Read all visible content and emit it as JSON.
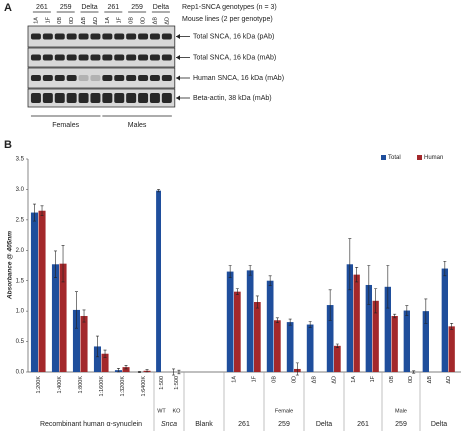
{
  "blot": {
    "label": "A",
    "genotype_title": "Rep1-SNCA genotypes (n = 3)",
    "lines_title": "Mouse lines (2 per genotype)",
    "genotypes": [
      "261",
      "259",
      "Delta",
      "261",
      "259",
      "Delta"
    ],
    "lanes": [
      "1A",
      "1F",
      "0B",
      "0D",
      "ΔB",
      "ΔD",
      "1A",
      "1F",
      "0B",
      "0D",
      "ΔB",
      "ΔD"
    ],
    "rows": [
      "Total SNCA, 16 kDa (pAb)",
      "Total SNCA, 16 kDa (mAb)",
      "Human SNCA, 16 kDa (mAb)",
      "Beta-actin, 38 kDa (mAb)"
    ],
    "sexes": [
      "Females",
      "Males"
    ]
  },
  "chart_data": {
    "type": "bar",
    "label": "B",
    "y_label": "Absorbance @ 405nm",
    "ylim": [
      0,
      3.5
    ],
    "yticks": [
      {
        "value": 0,
        "label": "0.0"
      },
      {
        "value": 0.5,
        "label": "0.5"
      },
      {
        "value": 1,
        "label": "1.0"
      },
      {
        "value": 1.5,
        "label": "1.5"
      },
      {
        "value": 2,
        "label": "2.0"
      },
      {
        "value": 2.5,
        "label": "2.5"
      },
      {
        "value": 3,
        "label": "3.0"
      },
      {
        "value": 3.5,
        "label": "3.5"
      }
    ],
    "categories": [
      "1:200K",
      "1:400K",
      "1:800K",
      "1:1600K",
      "1:3200K",
      "1:6400K",
      "1:500",
      "1:500",
      null,
      "1A",
      "1F",
      "0B",
      "0D",
      "ΔB",
      "ΔD",
      "1A",
      "1F",
      "0B",
      "0D",
      "ΔB",
      "ΔD"
    ],
    "subgroup": [
      null,
      null,
      null,
      null,
      null,
      null,
      "WT",
      "KO",
      null,
      "Female",
      "Female",
      "Female",
      "Female",
      "Female",
      "Female",
      "Male",
      "Male",
      "Male",
      "Male",
      "Male",
      "Male"
    ],
    "group": [
      "Recombinant human α-synuclein",
      "Recombinant human α-synuclein",
      "Recombinant human α-synuclein",
      "Recombinant human α-synuclein",
      "Recombinant human α-synuclein",
      "Recombinant human α-synuclein",
      "Snca",
      "Snca",
      "Blank",
      "261",
      "261",
      "259",
      "259",
      "Delta",
      "Delta",
      "261",
      "261",
      "259",
      "259",
      "Delta",
      "Delta"
    ],
    "series": [
      {
        "name": "Total",
        "color": "#1f4e9c",
        "values": [
          2.62,
          1.77,
          1.02,
          0.42,
          0.03,
          0,
          2.98,
          0,
          null,
          1.65,
          1.67,
          1.5,
          0.82,
          0.78,
          1.1,
          1.77,
          1.43,
          1.4,
          1.01,
          1.0,
          1.7
        ],
        "errors": [
          0.14,
          0.22,
          0.3,
          0.17,
          0.03,
          0.01,
          0.02,
          0.05,
          null,
          0.1,
          0.08,
          0.08,
          0.05,
          0.05,
          0.25,
          0.42,
          0.32,
          0.35,
          0.08,
          0.2,
          0.12
        ]
      },
      {
        "name": "Human",
        "color": "#a3282b",
        "values": [
          2.65,
          1.78,
          0.92,
          0.3,
          0.08,
          0.02,
          null,
          0,
          null,
          1.32,
          1.15,
          0.85,
          0.05,
          null,
          0.43,
          1.6,
          1.17,
          0.92,
          0,
          null,
          0.75
        ],
        "errors": [
          0.08,
          0.3,
          0.1,
          0.06,
          0.03,
          0.02,
          null,
          0.03,
          null,
          0.05,
          0.1,
          0.04,
          0.1,
          null,
          0.03,
          0.12,
          0.2,
          0.03,
          0.02,
          null,
          0.05
        ]
      }
    ],
    "legend": "upper right"
  }
}
